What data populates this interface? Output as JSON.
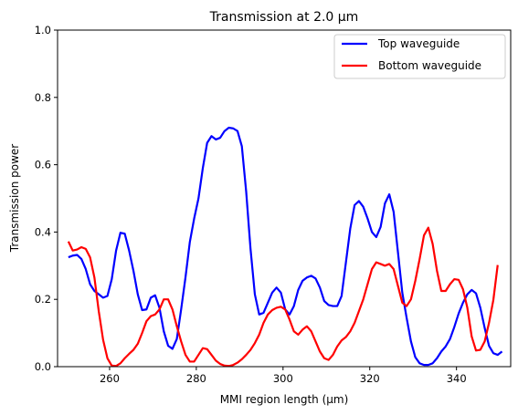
{
  "chart_data": {
    "type": "line",
    "title": "Transmission at 2.0 µm",
    "xlabel": "MMI region length (µm)",
    "ylabel": "Transmission power",
    "xlim": [
      248,
      352.5
    ],
    "ylim": [
      0,
      1.0
    ],
    "xticks": [
      260,
      280,
      300,
      320,
      340
    ],
    "yticks": [
      0.0,
      0.2,
      0.4,
      0.6,
      0.8,
      1.0
    ],
    "xtick_labels": [
      "260",
      "280",
      "300",
      "320",
      "340"
    ],
    "ytick_labels": [
      "0.0",
      "0.2",
      "0.4",
      "0.6",
      "0.8",
      "1.0"
    ],
    "grid": false,
    "legend": "top-right",
    "series": [
      {
        "name": "Top waveguide",
        "color": "#0000ff",
        "points": [
          [
            250.5,
            0.325
          ],
          [
            251.5,
            0.33
          ],
          [
            252.5,
            0.332
          ],
          [
            253.5,
            0.32
          ],
          [
            254.5,
            0.29
          ],
          [
            255.5,
            0.245
          ],
          [
            256.5,
            0.225
          ],
          [
            257.5,
            0.215
          ],
          [
            258.5,
            0.205
          ],
          [
            259.5,
            0.21
          ],
          [
            260.5,
            0.26
          ],
          [
            261.5,
            0.345
          ],
          [
            262.5,
            0.398
          ],
          [
            263.5,
            0.395
          ],
          [
            264.5,
            0.345
          ],
          [
            265.5,
            0.285
          ],
          [
            266.5,
            0.215
          ],
          [
            267.5,
            0.168
          ],
          [
            268.5,
            0.17
          ],
          [
            269.5,
            0.205
          ],
          [
            270.5,
            0.212
          ],
          [
            271.5,
            0.175
          ],
          [
            272.5,
            0.105
          ],
          [
            273.5,
            0.062
          ],
          [
            274.5,
            0.053
          ],
          [
            275.5,
            0.082
          ],
          [
            276.5,
            0.17
          ],
          [
            277.5,
            0.265
          ],
          [
            278.5,
            0.37
          ],
          [
            279.5,
            0.44
          ],
          [
            280.5,
            0.5
          ],
          [
            281.5,
            0.59
          ],
          [
            282.5,
            0.665
          ],
          [
            283.5,
            0.685
          ],
          [
            284.5,
            0.675
          ],
          [
            285.5,
            0.68
          ],
          [
            286.5,
            0.7
          ],
          [
            287.5,
            0.71
          ],
          [
            288.5,
            0.708
          ],
          [
            289.5,
            0.7
          ],
          [
            290.5,
            0.655
          ],
          [
            291.5,
            0.52
          ],
          [
            292.5,
            0.35
          ],
          [
            293.5,
            0.215
          ],
          [
            294.5,
            0.155
          ],
          [
            295.5,
            0.16
          ],
          [
            296.5,
            0.19
          ],
          [
            297.5,
            0.22
          ],
          [
            298.5,
            0.235
          ],
          [
            299.5,
            0.22
          ],
          [
            300.5,
            0.17
          ],
          [
            301.5,
            0.155
          ],
          [
            302.5,
            0.18
          ],
          [
            303.5,
            0.228
          ],
          [
            304.5,
            0.255
          ],
          [
            305.5,
            0.265
          ],
          [
            306.5,
            0.27
          ],
          [
            307.5,
            0.262
          ],
          [
            308.5,
            0.235
          ],
          [
            309.5,
            0.195
          ],
          [
            310.5,
            0.183
          ],
          [
            311.5,
            0.18
          ],
          [
            312.5,
            0.18
          ],
          [
            313.5,
            0.21
          ],
          [
            314.5,
            0.31
          ],
          [
            315.5,
            0.41
          ],
          [
            316.5,
            0.48
          ],
          [
            317.5,
            0.492
          ],
          [
            318.5,
            0.475
          ],
          [
            319.5,
            0.44
          ],
          [
            320.5,
            0.4
          ],
          [
            321.5,
            0.385
          ],
          [
            322.5,
            0.415
          ],
          [
            323.5,
            0.485
          ],
          [
            324.5,
            0.512
          ],
          [
            325.5,
            0.46
          ],
          [
            326.5,
            0.34
          ],
          [
            327.5,
            0.22
          ],
          [
            328.5,
            0.145
          ],
          [
            329.5,
            0.075
          ],
          [
            330.5,
            0.028
          ],
          [
            331.5,
            0.01
          ],
          [
            332.5,
            0.005
          ],
          [
            333.5,
            0.005
          ],
          [
            334.5,
            0.01
          ],
          [
            335.5,
            0.025
          ],
          [
            336.5,
            0.045
          ],
          [
            337.5,
            0.06
          ],
          [
            338.5,
            0.082
          ],
          [
            339.5,
            0.118
          ],
          [
            340.5,
            0.158
          ],
          [
            341.5,
            0.19
          ],
          [
            342.5,
            0.215
          ],
          [
            343.5,
            0.228
          ],
          [
            344.5,
            0.218
          ],
          [
            345.5,
            0.175
          ],
          [
            346.5,
            0.115
          ],
          [
            347.5,
            0.062
          ],
          [
            348.5,
            0.04
          ],
          [
            349.5,
            0.035
          ],
          [
            350.5,
            0.045
          ]
        ]
      },
      {
        "name": "Bottom waveguide",
        "color": "#ff0000",
        "points": [
          [
            250.5,
            0.372
          ],
          [
            251.5,
            0.345
          ],
          [
            252.5,
            0.348
          ],
          [
            253.5,
            0.355
          ],
          [
            254.5,
            0.35
          ],
          [
            255.5,
            0.325
          ],
          [
            256.5,
            0.265
          ],
          [
            257.5,
            0.165
          ],
          [
            258.5,
            0.08
          ],
          [
            259.5,
            0.025
          ],
          [
            260.5,
            0.003
          ],
          [
            261.5,
            0.002
          ],
          [
            262.5,
            0.01
          ],
          [
            263.5,
            0.025
          ],
          [
            264.5,
            0.038
          ],
          [
            265.5,
            0.05
          ],
          [
            266.5,
            0.068
          ],
          [
            267.5,
            0.1
          ],
          [
            268.5,
            0.135
          ],
          [
            269.5,
            0.15
          ],
          [
            270.5,
            0.155
          ],
          [
            271.5,
            0.17
          ],
          [
            272.5,
            0.2
          ],
          [
            273.5,
            0.2
          ],
          [
            274.5,
            0.17
          ],
          [
            275.5,
            0.12
          ],
          [
            276.5,
            0.075
          ],
          [
            277.5,
            0.035
          ],
          [
            278.5,
            0.015
          ],
          [
            279.5,
            0.015
          ],
          [
            280.5,
            0.035
          ],
          [
            281.5,
            0.055
          ],
          [
            282.5,
            0.052
          ],
          [
            283.5,
            0.035
          ],
          [
            284.5,
            0.018
          ],
          [
            285.5,
            0.008
          ],
          [
            286.5,
            0.003
          ],
          [
            287.5,
            0.002
          ],
          [
            288.5,
            0.005
          ],
          [
            289.5,
            0.012
          ],
          [
            290.5,
            0.022
          ],
          [
            291.5,
            0.035
          ],
          [
            292.5,
            0.05
          ],
          [
            293.5,
            0.07
          ],
          [
            294.5,
            0.095
          ],
          [
            295.5,
            0.13
          ],
          [
            296.5,
            0.155
          ],
          [
            297.5,
            0.168
          ],
          [
            298.5,
            0.175
          ],
          [
            299.5,
            0.178
          ],
          [
            300.5,
            0.17
          ],
          [
            301.5,
            0.14
          ],
          [
            302.5,
            0.105
          ],
          [
            303.5,
            0.095
          ],
          [
            304.5,
            0.11
          ],
          [
            305.5,
            0.12
          ],
          [
            306.5,
            0.105
          ],
          [
            307.5,
            0.075
          ],
          [
            308.5,
            0.045
          ],
          [
            309.5,
            0.025
          ],
          [
            310.5,
            0.02
          ],
          [
            311.5,
            0.035
          ],
          [
            312.5,
            0.06
          ],
          [
            313.5,
            0.078
          ],
          [
            314.5,
            0.088
          ],
          [
            315.5,
            0.105
          ],
          [
            316.5,
            0.13
          ],
          [
            317.5,
            0.165
          ],
          [
            318.5,
            0.2
          ],
          [
            319.5,
            0.245
          ],
          [
            320.5,
            0.29
          ],
          [
            321.5,
            0.31
          ],
          [
            322.5,
            0.305
          ],
          [
            323.5,
            0.3
          ],
          [
            324.5,
            0.305
          ],
          [
            325.5,
            0.29
          ],
          [
            326.5,
            0.24
          ],
          [
            327.5,
            0.19
          ],
          [
            328.5,
            0.18
          ],
          [
            329.5,
            0.2
          ],
          [
            330.5,
            0.255
          ],
          [
            331.5,
            0.32
          ],
          [
            332.5,
            0.39
          ],
          [
            333.5,
            0.413
          ],
          [
            334.5,
            0.365
          ],
          [
            335.5,
            0.285
          ],
          [
            336.5,
            0.225
          ],
          [
            337.5,
            0.225
          ],
          [
            338.5,
            0.245
          ],
          [
            339.5,
            0.26
          ],
          [
            340.5,
            0.258
          ],
          [
            341.5,
            0.23
          ],
          [
            342.5,
            0.175
          ],
          [
            343.5,
            0.09
          ],
          [
            344.5,
            0.048
          ],
          [
            345.5,
            0.05
          ],
          [
            346.5,
            0.075
          ],
          [
            347.5,
            0.13
          ],
          [
            348.5,
            0.198
          ],
          [
            349.5,
            0.302
          ]
        ]
      }
    ]
  }
}
